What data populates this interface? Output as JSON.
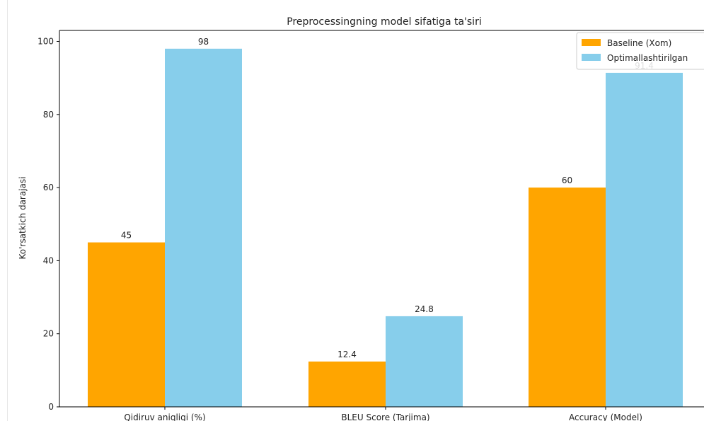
{
  "chart_data": {
    "type": "bar",
    "title": "Preprocessingning model sifatiga ta'siri",
    "xlabel": "",
    "ylabel": "Ko'rsatkich darajasi",
    "categories": [
      "Qidiruv aniqligi (%)",
      "BLEU Score (Tarjima)",
      "Accuracy (Model)"
    ],
    "series": [
      {
        "name": "Baseline (Xom)",
        "color": "#ffa500",
        "values": [
          45,
          12.4,
          60
        ],
        "labels": [
          "45",
          "12.4",
          "60"
        ]
      },
      {
        "name": "Optimallashtirilgan",
        "color": "#87ceeb",
        "values": [
          98,
          24.8,
          91.4
        ],
        "labels": [
          "98",
          "24.8",
          "91.4"
        ]
      }
    ],
    "ylim": [
      0,
      103
    ],
    "yticks": [
      0,
      20,
      40,
      60,
      80,
      100
    ],
    "grid": false,
    "legend_position": "top-right"
  }
}
